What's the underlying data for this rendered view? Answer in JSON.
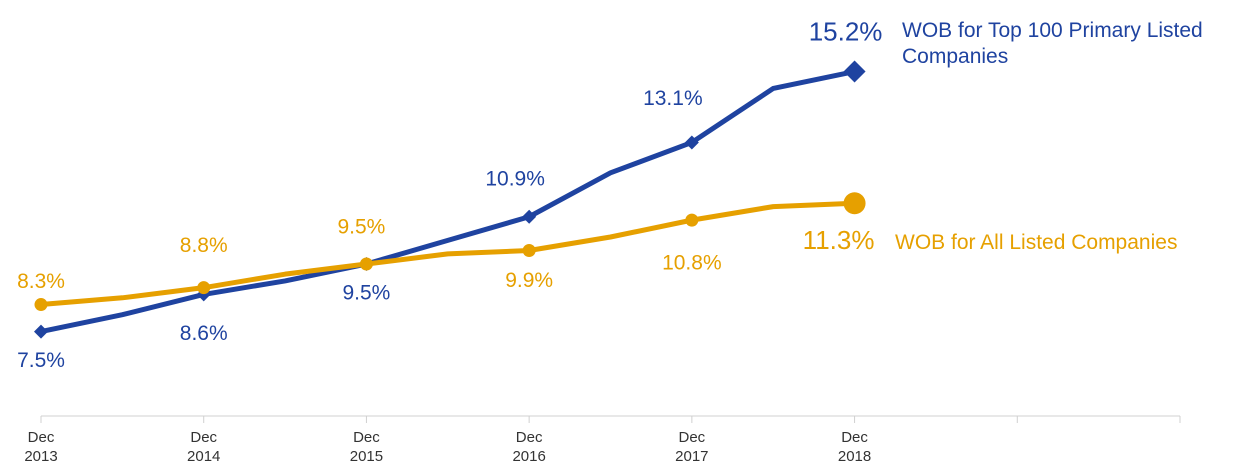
{
  "chart_data": {
    "type": "line",
    "categories": [
      "Dec 2013",
      null,
      "Dec 2014",
      null,
      "Dec 2015",
      null,
      "Dec 2016",
      null,
      "Dec 2017",
      null,
      "Dec 2018"
    ],
    "xlim": [
      0,
      14
    ],
    "xticks": [
      0,
      2,
      4,
      6,
      8,
      10,
      12,
      14
    ],
    "ylim": [
      5,
      16
    ],
    "series": [
      {
        "name": "WOB for Top 100 Primary Listed Companies",
        "color": "#1f43a0",
        "values": [
          7.5,
          8.0,
          8.6,
          9.0,
          9.5,
          10.2,
          10.9,
          12.2,
          13.1,
          14.7,
          15.2
        ],
        "value_labels": [
          "7.5%",
          null,
          "8.6%",
          null,
          "9.5%",
          null,
          "10.9%",
          null,
          "13.1%",
          null,
          "15.2%"
        ]
      },
      {
        "name": "WOB for All Listed Companies",
        "color": "#e6a000",
        "values": [
          8.3,
          8.5,
          8.8,
          9.2,
          9.5,
          9.8,
          9.9,
          10.3,
          10.8,
          11.2,
          11.3
        ],
        "value_labels": [
          "8.3%",
          null,
          "8.8%",
          null,
          "9.5%",
          null,
          "9.9%",
          null,
          "10.8%",
          null,
          "11.3%"
        ]
      }
    ]
  }
}
